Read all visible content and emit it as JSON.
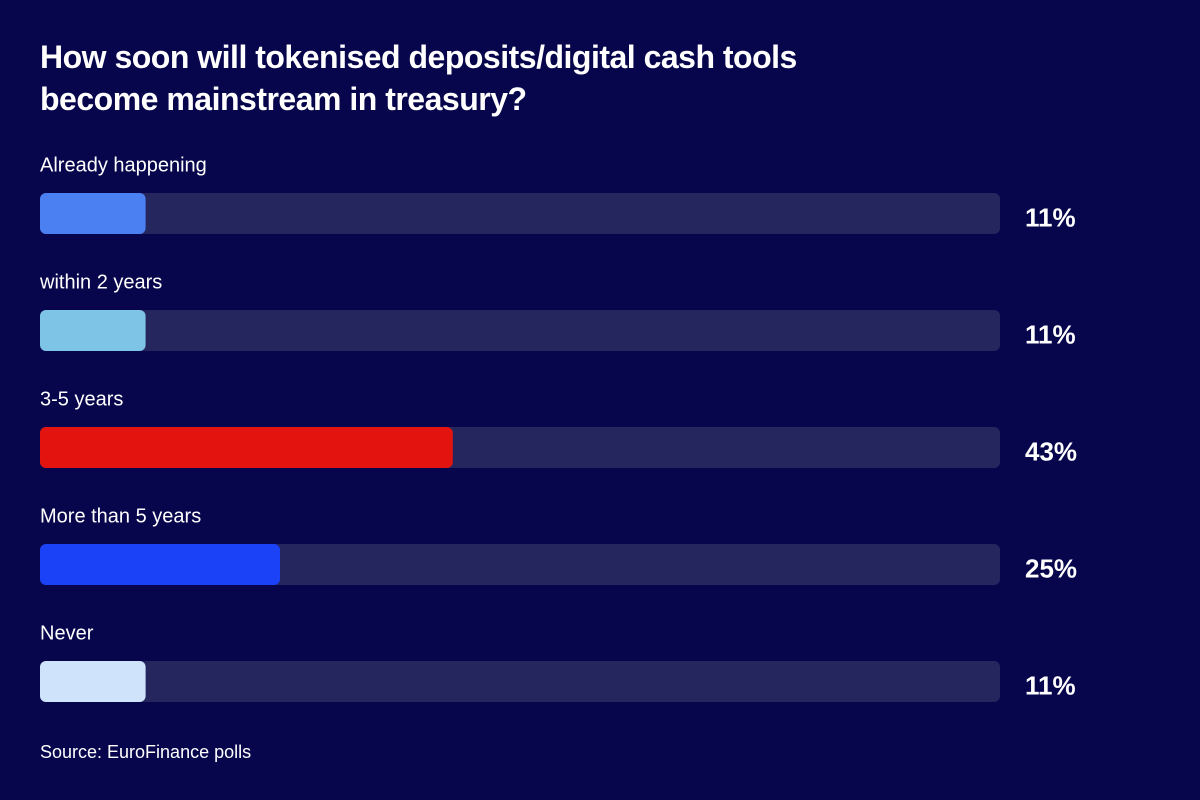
{
  "chart_data": {
    "type": "bar",
    "orientation": "horizontal",
    "title": "How soon will tokenised deposits/digital cash tools become mainstream in treasury?",
    "categories": [
      "Already happening",
      "within 2 years",
      "3-5 years",
      "More than 5 years",
      "Never"
    ],
    "values": [
      11,
      11,
      43,
      25,
      11
    ],
    "value_labels": [
      "11%",
      "11%",
      "43%",
      "25%",
      "11%"
    ],
    "colors": [
      "#4a80f2",
      "#7ec4e6",
      "#e3140f",
      "#1b42f6",
      "#cfe4fb"
    ],
    "track_color": "#26265f",
    "xlim": [
      0,
      100
    ],
    "source": "Source: EuroFinance polls"
  }
}
